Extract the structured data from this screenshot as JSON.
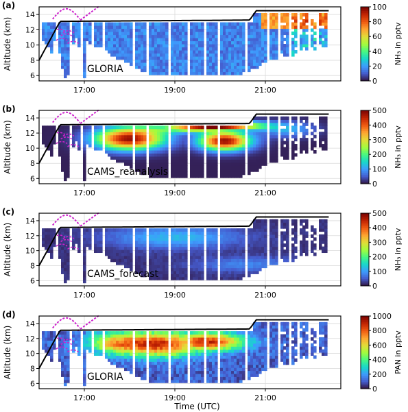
{
  "figure": {
    "xlabel": "Time (UTC)"
  },
  "colors": {
    "flight_track": "#000000",
    "tangent_points": "#cc22cc",
    "no_data": "#ffffff",
    "grid": "#d9d9d9"
  },
  "chart_data": [
    {
      "type": "heatmap",
      "panel_label": "(a)",
      "annotation": "GLORIA",
      "ylabel": "Altitude (km)",
      "x_ticks": [
        "17:00",
        "19:00",
        "21:00"
      ],
      "y_ticks": [
        6,
        8,
        10,
        12,
        14
      ],
      "xlim": [
        "16:00",
        "22:40"
      ],
      "ylim": [
        5.3,
        15
      ],
      "colorbar": {
        "label": "NH₃ in pptv",
        "min": 0,
        "max": 100,
        "ticks": [
          0,
          20,
          40,
          60,
          80,
          100
        ],
        "colormap": "turbo"
      }
    },
    {
      "type": "heatmap",
      "panel_label": "(b)",
      "annotation": "CAMS_reanalysis",
      "ylabel": "Altitude (km)",
      "x_ticks": [
        "17:00",
        "19:00",
        "21:00"
      ],
      "y_ticks": [
        6,
        8,
        10,
        12,
        14
      ],
      "xlim": [
        "16:00",
        "22:40"
      ],
      "ylim": [
        5.3,
        15
      ],
      "colorbar": {
        "label": "NH₃ in pptv",
        "min": 0,
        "max": 500,
        "ticks": [
          0,
          100,
          200,
          300,
          400,
          500
        ],
        "colormap": "turbo"
      }
    },
    {
      "type": "heatmap",
      "panel_label": "(c)",
      "annotation": "CAMS_forecast",
      "ylabel": "Altitude (km)",
      "x_ticks": [
        "17:00",
        "19:00",
        "21:00"
      ],
      "y_ticks": [
        6,
        8,
        10,
        12,
        14
      ],
      "xlim": [
        "16:00",
        "22:40"
      ],
      "ylim": [
        5.3,
        15
      ],
      "colorbar": {
        "label": "NH₃ in pptv",
        "min": 0,
        "max": 500,
        "ticks": [
          0,
          100,
          200,
          300,
          400,
          500
        ],
        "colormap": "turbo"
      }
    },
    {
      "type": "heatmap",
      "panel_label": "(d)",
      "annotation": "GLORIA",
      "ylabel": "Altitude (km)",
      "x_ticks": [
        "17:00",
        "19:00",
        "21:00"
      ],
      "y_ticks": [
        6,
        8,
        10,
        12,
        14
      ],
      "xlim": [
        "16:00",
        "22:40"
      ],
      "ylim": [
        5.3,
        15
      ],
      "colorbar": {
        "label": "PAN in pptv",
        "min": 0,
        "max": 1000,
        "ticks": [
          0,
          200,
          400,
          600,
          800,
          1000
        ],
        "colormap": "turbo"
      }
    }
  ]
}
